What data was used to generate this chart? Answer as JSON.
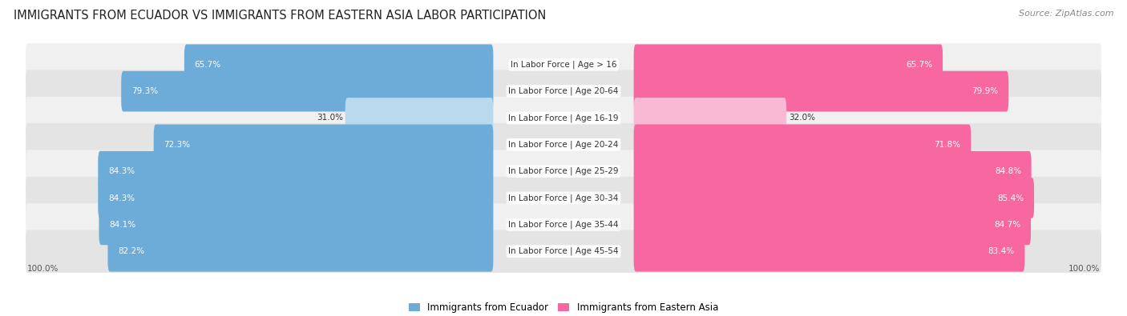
{
  "title": "IMMIGRANTS FROM ECUADOR VS IMMIGRANTS FROM EASTERN ASIA LABOR PARTICIPATION",
  "source": "Source: ZipAtlas.com",
  "categories": [
    "In Labor Force | Age > 16",
    "In Labor Force | Age 20-64",
    "In Labor Force | Age 16-19",
    "In Labor Force | Age 20-24",
    "In Labor Force | Age 25-29",
    "In Labor Force | Age 30-34",
    "In Labor Force | Age 35-44",
    "In Labor Force | Age 45-54"
  ],
  "ecuador_values": [
    65.7,
    79.3,
    31.0,
    72.3,
    84.3,
    84.3,
    84.1,
    82.2
  ],
  "eastern_asia_values": [
    65.7,
    79.9,
    32.0,
    71.8,
    84.8,
    85.4,
    84.7,
    83.4
  ],
  "ecuador_color": "#6dacd8",
  "eastern_asia_color": "#f768a1",
  "ecuador_color_light": "#b8d9ee",
  "eastern_asia_color_light": "#f9b8d4",
  "row_bg_even": "#f0f0f0",
  "row_bg_odd": "#e4e4e4",
  "max_value": 100.0,
  "legend_ecuador": "Immigrants from Ecuador",
  "legend_eastern_asia": "Immigrants from Eastern Asia",
  "title_fontsize": 10.5,
  "label_fontsize": 7.5,
  "value_fontsize": 7.5,
  "legend_fontsize": 8.5,
  "axis_label_fontsize": 7.5
}
